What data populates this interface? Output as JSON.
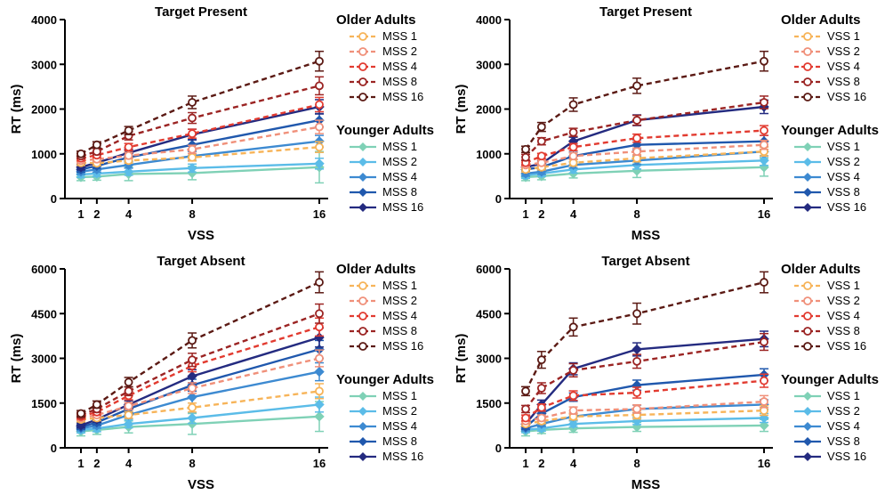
{
  "colors": {
    "older": [
      "#f7b459",
      "#f0907a",
      "#e23b30",
      "#9b2423",
      "#5b1a14"
    ],
    "younger": [
      "#7fd1b6",
      "#5bbce8",
      "#3d8ad1",
      "#2058ad",
      "#242b80"
    ]
  },
  "chart_data": [
    {
      "type": "line",
      "title": "Target Present",
      "xlabel": "VSS",
      "ylabel": "RT (ms)",
      "x": [
        1,
        2,
        4,
        8,
        16
      ],
      "xlim": [
        0,
        17
      ],
      "ylim": [
        0,
        4000
      ],
      "yticks": [
        0,
        1000,
        2000,
        3000,
        4000
      ],
      "legend_groups": [
        {
          "name": "Older Adults",
          "series": [
            {
              "name": "MSS 1",
              "values": [
                800,
                790,
                850,
                920,
                1150
              ],
              "err": [
                60,
                60,
                60,
                80,
                120
              ]
            },
            {
              "name": "MSS 2",
              "values": [
                850,
                880,
                960,
                1100,
                1600
              ],
              "err": [
                60,
                60,
                70,
                90,
                150
              ]
            },
            {
              "name": "MSS 4",
              "values": [
                900,
                970,
                1150,
                1450,
                2100
              ],
              "err": [
                60,
                60,
                80,
                100,
                160
              ]
            },
            {
              "name": "MSS 8",
              "values": [
                950,
                1050,
                1400,
                1800,
                2520
              ],
              "err": [
                60,
                70,
                90,
                120,
                200
              ]
            },
            {
              "name": "MSS 16",
              "values": [
                1000,
                1200,
                1520,
                2150,
                3070
              ],
              "err": [
                60,
                70,
                90,
                140,
                220
              ]
            }
          ]
        },
        {
          "name": "Younger Adults",
          "series": [
            {
              "name": "MSS 1",
              "values": [
                480,
                490,
                550,
                570,
                700
              ],
              "err": [
                80,
                80,
                150,
                150,
                350
              ]
            },
            {
              "name": "MSS 2",
              "values": [
                540,
                560,
                600,
                680,
                780
              ],
              "err": [
                70,
                70,
                80,
                90,
                120
              ]
            },
            {
              "name": "MSS 4",
              "values": [
                600,
                650,
                750,
                950,
                1280
              ],
              "err": [
                60,
                60,
                70,
                100,
                130
              ]
            },
            {
              "name": "MSS 8",
              "values": [
                650,
                730,
                920,
                1200,
                1750
              ],
              "err": [
                60,
                60,
                80,
                120,
                150
              ]
            },
            {
              "name": "MSS 16",
              "values": [
                700,
                800,
                1020,
                1430,
                2050
              ],
              "err": [
                60,
                60,
                80,
                120,
                160
              ]
            }
          ]
        }
      ]
    },
    {
      "type": "line",
      "title": "Target Present",
      "xlabel": "MSS",
      "ylabel": "RT (ms)",
      "x": [
        1,
        2,
        4,
        8,
        16
      ],
      "xlim": [
        0,
        17
      ],
      "ylim": [
        0,
        4000
      ],
      "yticks": [
        0,
        1000,
        2000,
        3000,
        4000
      ],
      "legend_groups": [
        {
          "name": "Older Adults",
          "series": [
            {
              "name": "VSS 1",
              "values": [
                650,
                700,
                800,
                900,
                1050
              ],
              "err": [
                60,
                60,
                70,
                80,
                100
              ]
            },
            {
              "name": "VSS 2",
              "values": [
                750,
                800,
                950,
                1050,
                1200
              ],
              "err": [
                60,
                60,
                70,
                80,
                100
              ]
            },
            {
              "name": "VSS 4",
              "values": [
                800,
                950,
                1150,
                1350,
                1520
              ],
              "err": [
                60,
                60,
                80,
                90,
                110
              ]
            },
            {
              "name": "VSS 8",
              "values": [
                920,
                1280,
                1480,
                1750,
                2150
              ],
              "err": [
                70,
                80,
                90,
                110,
                140
              ]
            },
            {
              "name": "VSS 16",
              "values": [
                1100,
                1600,
                2100,
                2520,
                3070
              ],
              "err": [
                70,
                100,
                150,
                170,
                220
              ]
            }
          ]
        },
        {
          "name": "Younger Adults",
          "series": [
            {
              "name": "VSS 1",
              "values": [
                480,
                500,
                560,
                620,
                700
              ],
              "err": [
                80,
                80,
                100,
                150,
                200
              ]
            },
            {
              "name": "VSS 2",
              "values": [
                520,
                560,
                650,
                750,
                850
              ],
              "err": [
                70,
                70,
                80,
                90,
                110
              ]
            },
            {
              "name": "VSS 4",
              "values": [
                560,
                600,
                750,
                850,
                1050
              ],
              "err": [
                60,
                60,
                70,
                90,
                110
              ]
            },
            {
              "name": "VSS 8",
              "values": [
                650,
                700,
                950,
                1200,
                1280
              ],
              "err": [
                60,
                60,
                80,
                110,
                130
              ]
            },
            {
              "name": "VSS 16",
              "values": [
                700,
                780,
                1280,
                1750,
                2050
              ],
              "err": [
                60,
                60,
                90,
                120,
                150
              ]
            }
          ]
        }
      ]
    },
    {
      "type": "line",
      "title": "Target Absent",
      "xlabel": "VSS",
      "ylabel": "RT (ms)",
      "x": [
        1,
        2,
        4,
        8,
        16
      ],
      "xlim": [
        0,
        17
      ],
      "ylim": [
        0,
        6000
      ],
      "yticks": [
        0,
        1500,
        3000,
        4500,
        6000
      ],
      "legend_groups": [
        {
          "name": "Older Adults",
          "series": [
            {
              "name": "MSS 1",
              "values": [
                950,
                1000,
                1100,
                1350,
                1900
              ],
              "err": [
                80,
                90,
                110,
                150,
                250
              ]
            },
            {
              "name": "MSS 2",
              "values": [
                1000,
                1100,
                1400,
                2000,
                3000
              ],
              "err": [
                80,
                90,
                120,
                180,
                280
              ]
            },
            {
              "name": "MSS 4",
              "values": [
                1050,
                1200,
                1750,
                2750,
                4050
              ],
              "err": [
                90,
                100,
                140,
                200,
                300
              ]
            },
            {
              "name": "MSS 8",
              "values": [
                1100,
                1300,
                1900,
                2950,
                4500
              ],
              "err": [
                90,
                110,
                150,
                220,
                320
              ]
            },
            {
              "name": "MSS 16",
              "values": [
                1150,
                1450,
                2200,
                3600,
                5550
              ],
              "err": [
                100,
                120,
                160,
                250,
                350
              ]
            }
          ]
        },
        {
          "name": "Younger Adults",
          "series": [
            {
              "name": "MSS 1",
              "values": [
                550,
                600,
                700,
                800,
                1050
              ],
              "err": [
                150,
                150,
                200,
                350,
                500
              ]
            },
            {
              "name": "MSS 2",
              "values": [
                600,
                650,
                800,
                1000,
                1450
              ],
              "err": [
                100,
                110,
                130,
                180,
                250
              ]
            },
            {
              "name": "MSS 4",
              "values": [
                650,
                750,
                1100,
                1700,
                2550
              ],
              "err": [
                80,
                90,
                120,
                200,
                300
              ]
            },
            {
              "name": "MSS 8",
              "values": [
                700,
                850,
                1300,
                2100,
                3300
              ],
              "err": [
                80,
                90,
                120,
                200,
                300
              ]
            },
            {
              "name": "MSS 16",
              "values": [
                750,
                950,
                1450,
                2400,
                3700
              ],
              "err": [
                80,
                90,
                130,
                220,
                320
              ]
            }
          ]
        }
      ]
    },
    {
      "type": "line",
      "title": "Target Absent",
      "xlabel": "MSS",
      "ylabel": "RT (ms)",
      "x": [
        1,
        2,
        4,
        8,
        16
      ],
      "xlim": [
        0,
        17
      ],
      "ylim": [
        0,
        6000
      ],
      "yticks": [
        0,
        1500,
        3000,
        4500,
        6000
      ],
      "legend_groups": [
        {
          "name": "Older Adults",
          "series": [
            {
              "name": "VSS 1",
              "values": [
                800,
                900,
                1050,
                1100,
                1250
              ],
              "err": [
                80,
                90,
                110,
                130,
                160
              ]
            },
            {
              "name": "VSS 2",
              "values": [
                900,
                1000,
                1250,
                1300,
                1550
              ],
              "err": [
                90,
                100,
                120,
                140,
                200
              ]
            },
            {
              "name": "VSS 4",
              "values": [
                1000,
                1350,
                1750,
                1850,
                2250
              ],
              "err": [
                100,
                120,
                160,
                180,
                220
              ]
            },
            {
              "name": "VSS 8",
              "values": [
                1300,
                2000,
                2600,
                2900,
                3550
              ],
              "err": [
                120,
                180,
                220,
                230,
                280
              ]
            },
            {
              "name": "VSS 16",
              "values": [
                1900,
                2950,
                4050,
                4500,
                5550
              ],
              "err": [
                150,
                280,
                300,
                350,
                350
              ]
            }
          ]
        },
        {
          "name": "Younger Adults",
          "series": [
            {
              "name": "VSS 1",
              "values": [
                550,
                600,
                650,
                700,
                750
              ],
              "err": [
                150,
                120,
                130,
                150,
                200
              ]
            },
            {
              "name": "VSS 2",
              "values": [
                600,
                650,
                800,
                900,
                1000
              ],
              "err": [
                90,
                90,
                100,
                120,
                150
              ]
            },
            {
              "name": "VSS 4",
              "values": [
                650,
                800,
                1050,
                1300,
                1450
              ],
              "err": [
                80,
                90,
                110,
                130,
                160
              ]
            },
            {
              "name": "VSS 8",
              "values": [
                700,
                1150,
                1700,
                2100,
                2450
              ],
              "err": [
                80,
                100,
                140,
                170,
                200
              ]
            },
            {
              "name": "VSS 16",
              "values": [
                800,
                1450,
                2650,
                3300,
                3650
              ],
              "err": [
                90,
                150,
                200,
                220,
                260
              ]
            }
          ]
        }
      ]
    }
  ]
}
